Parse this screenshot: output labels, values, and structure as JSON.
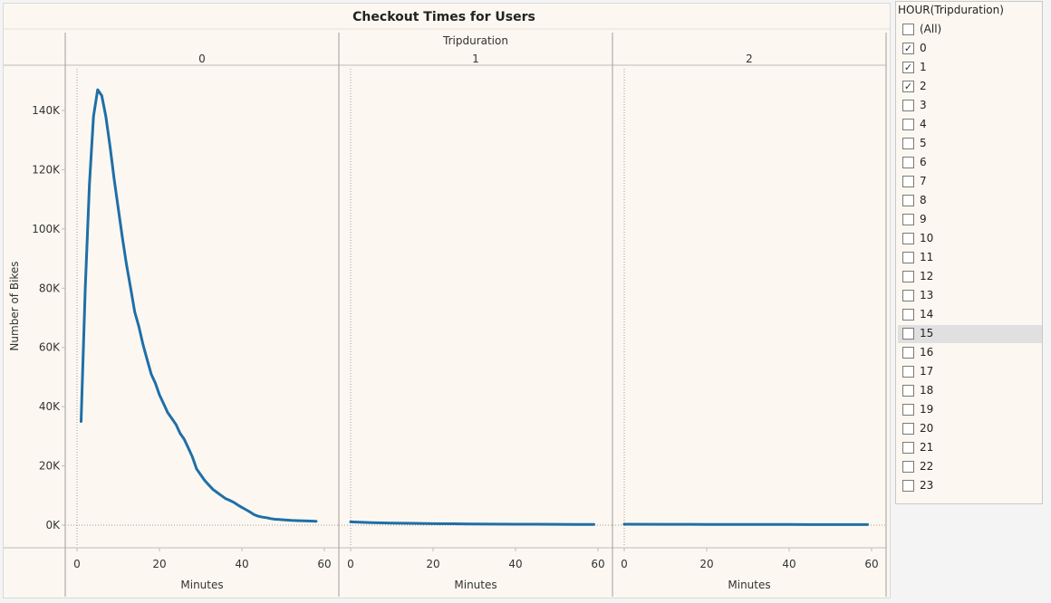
{
  "chart_data": {
    "type": "line",
    "title": "Checkout Times for Users",
    "column_header": "Tripduration",
    "xlabel": "Minutes",
    "ylabel": "Number of Bikes",
    "color": "#1f6fa8",
    "xlim": [
      0,
      60
    ],
    "ylim": [
      0,
      150000
    ],
    "x_ticks": [
      0,
      20,
      40,
      60
    ],
    "y_ticks": [
      {
        "value": 0,
        "label": "0K"
      },
      {
        "value": 20000,
        "label": "20K"
      },
      {
        "value": 40000,
        "label": "40K"
      },
      {
        "value": 60000,
        "label": "60K"
      },
      {
        "value": 80000,
        "label": "80K"
      },
      {
        "value": 100000,
        "label": "100K"
      },
      {
        "value": 120000,
        "label": "120K"
      },
      {
        "value": 140000,
        "label": "140K"
      }
    ],
    "panels": [
      {
        "label": "0",
        "points": [
          [
            1,
            35000
          ],
          [
            2,
            80000
          ],
          [
            3,
            115000
          ],
          [
            4,
            138000
          ],
          [
            5,
            147000
          ],
          [
            6,
            145000
          ],
          [
            7,
            138000
          ],
          [
            8,
            128000
          ],
          [
            9,
            117000
          ],
          [
            10,
            107000
          ],
          [
            11,
            97000
          ],
          [
            12,
            88000
          ],
          [
            13,
            80000
          ],
          [
            14,
            72000
          ],
          [
            15,
            67000
          ],
          [
            16,
            61000
          ],
          [
            17,
            56000
          ],
          [
            18,
            51000
          ],
          [
            19,
            48000
          ],
          [
            20,
            44000
          ],
          [
            21,
            41000
          ],
          [
            22,
            38000
          ],
          [
            23,
            36000
          ],
          [
            24,
            34000
          ],
          [
            25,
            31000
          ],
          [
            26,
            29000
          ],
          [
            27,
            26000
          ],
          [
            28,
            23000
          ],
          [
            29,
            19000
          ],
          [
            30,
            17000
          ],
          [
            31,
            15000
          ],
          [
            32,
            13500
          ],
          [
            33,
            12000
          ],
          [
            34,
            11000
          ],
          [
            35,
            10000
          ],
          [
            36,
            9000
          ],
          [
            37,
            8400
          ],
          [
            38,
            7700
          ],
          [
            39,
            6800
          ],
          [
            40,
            6000
          ],
          [
            41,
            5200
          ],
          [
            42,
            4400
          ],
          [
            43,
            3500
          ],
          [
            44,
            3000
          ],
          [
            45,
            2700
          ],
          [
            46,
            2500
          ],
          [
            47,
            2200
          ],
          [
            48,
            2000
          ],
          [
            49,
            1900
          ],
          [
            50,
            1800
          ],
          [
            52,
            1600
          ],
          [
            54,
            1500
          ],
          [
            56,
            1400
          ],
          [
            58,
            1300
          ]
        ]
      },
      {
        "label": "1",
        "points": [
          [
            0,
            1100
          ],
          [
            5,
            850
          ],
          [
            10,
            700
          ],
          [
            15,
            600
          ],
          [
            20,
            500
          ],
          [
            25,
            450
          ],
          [
            30,
            400
          ],
          [
            35,
            350
          ],
          [
            40,
            320
          ],
          [
            45,
            300
          ],
          [
            50,
            270
          ],
          [
            55,
            250
          ],
          [
            59,
            240
          ]
        ]
      },
      {
        "label": "2",
        "points": [
          [
            0,
            300
          ],
          [
            10,
            280
          ],
          [
            20,
            250
          ],
          [
            30,
            220
          ],
          [
            40,
            200
          ],
          [
            50,
            180
          ],
          [
            59,
            170
          ]
        ]
      }
    ]
  },
  "filter": {
    "title": "HOUR(Tripduration)",
    "items": [
      {
        "label": "(All)",
        "checked": false
      },
      {
        "label": "0",
        "checked": true
      },
      {
        "label": "1",
        "checked": true
      },
      {
        "label": "2",
        "checked": true
      },
      {
        "label": "3",
        "checked": false
      },
      {
        "label": "4",
        "checked": false
      },
      {
        "label": "5",
        "checked": false
      },
      {
        "label": "6",
        "checked": false
      },
      {
        "label": "7",
        "checked": false
      },
      {
        "label": "8",
        "checked": false
      },
      {
        "label": "9",
        "checked": false
      },
      {
        "label": "10",
        "checked": false
      },
      {
        "label": "11",
        "checked": false
      },
      {
        "label": "12",
        "checked": false
      },
      {
        "label": "13",
        "checked": false
      },
      {
        "label": "14",
        "checked": false
      },
      {
        "label": "15",
        "checked": false
      },
      {
        "label": "16",
        "checked": false
      },
      {
        "label": "17",
        "checked": false
      },
      {
        "label": "18",
        "checked": false
      },
      {
        "label": "19",
        "checked": false
      },
      {
        "label": "20",
        "checked": false
      },
      {
        "label": "21",
        "checked": false
      },
      {
        "label": "22",
        "checked": false
      },
      {
        "label": "23",
        "checked": false
      }
    ],
    "highlighted_label": "15"
  }
}
